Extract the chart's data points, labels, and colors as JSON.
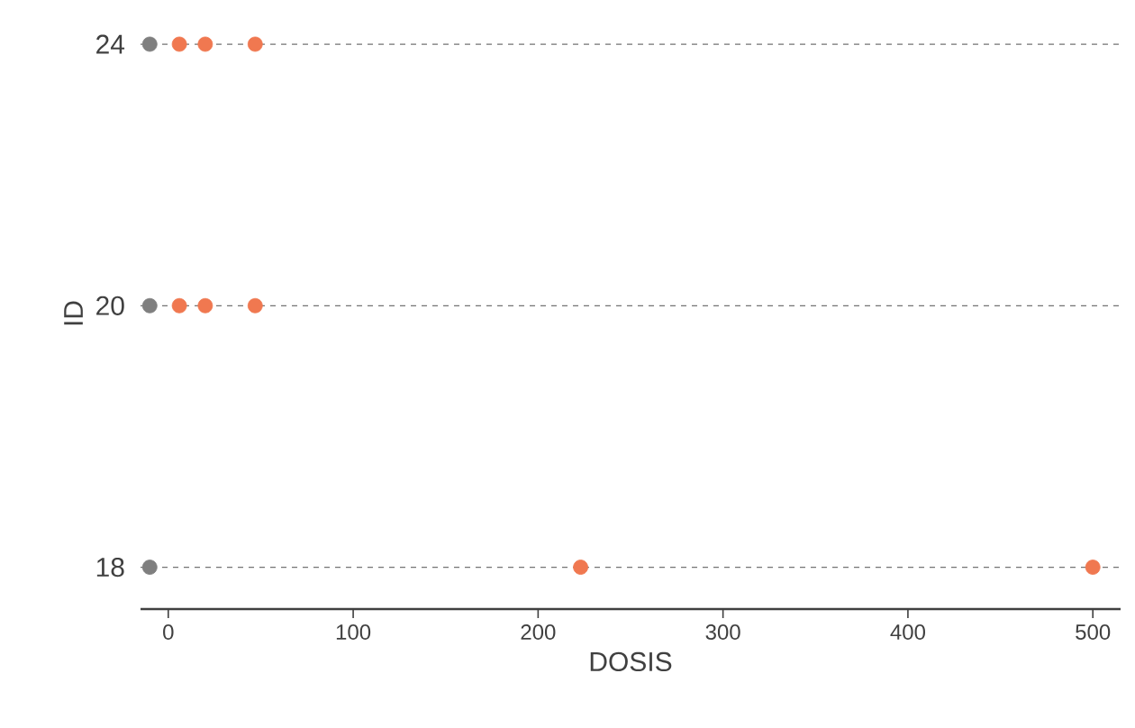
{
  "chart_data": {
    "type": "scatter",
    "orientation": "horizontal",
    "xlabel": "DOSIS",
    "ylabel": "ID",
    "categories": [
      "24",
      "20",
      "18"
    ],
    "series": [
      {
        "color": "#7f7f7f",
        "values": [
          -10,
          -10,
          -10
        ]
      },
      {
        "color": "#f07850",
        "values": [
          6,
          6,
          223
        ]
      },
      {
        "color": "#f07850",
        "values": [
          20,
          20,
          500
        ]
      },
      {
        "color": "#f07850",
        "values": [
          47,
          47,
          null
        ]
      }
    ],
    "xlim": [
      -15,
      515
    ],
    "xticks": [
      0,
      100,
      200,
      300,
      400,
      500
    ],
    "grid": "y"
  }
}
